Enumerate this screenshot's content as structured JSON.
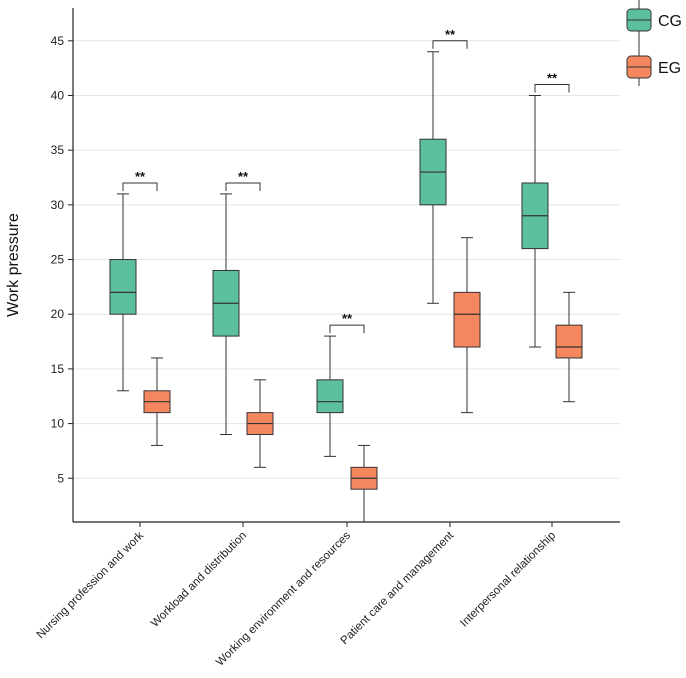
{
  "chart_data": {
    "type": "boxplot",
    "ylabel": "Work pressure",
    "xlabel": "",
    "ylim": [
      1,
      48
    ],
    "yticks": [
      5,
      10,
      15,
      20,
      25,
      30,
      35,
      40,
      45
    ],
    "grid": "horizontal",
    "legend_position": "top-right",
    "categories": [
      "Nursing profession and work",
      "Workload and distribution",
      "Working environment and resources",
      "Patient care and management",
      "Interpersonal relationship"
    ],
    "series": [
      {
        "name": "CG",
        "color": "#5dc09c",
        "boxes": [
          {
            "min": 13,
            "q1": 20,
            "median": 22,
            "q3": 25,
            "max": 31
          },
          {
            "min": 9,
            "q1": 18,
            "median": 21,
            "q3": 24,
            "max": 31
          },
          {
            "min": 7,
            "q1": 11,
            "median": 12,
            "q3": 14,
            "max": 18
          },
          {
            "min": 21,
            "q1": 30,
            "median": 33,
            "q3": 36,
            "max": 44
          },
          {
            "min": 17,
            "q1": 26,
            "median": 29,
            "q3": 32,
            "max": 40
          }
        ]
      },
      {
        "name": "EG",
        "color": "#f5875e",
        "boxes": [
          {
            "min": 8,
            "q1": 11,
            "median": 12,
            "q3": 13,
            "max": 16
          },
          {
            "min": 6,
            "q1": 9,
            "median": 10,
            "q3": 11,
            "max": 14
          },
          {
            "min": 1,
            "q1": 4,
            "median": 5,
            "q3": 6,
            "max": 8
          },
          {
            "min": 11,
            "q1": 17,
            "median": 20,
            "q3": 22,
            "max": 27
          },
          {
            "min": 12,
            "q1": 16,
            "median": 17,
            "q3": 19,
            "max": 22
          }
        ]
      }
    ],
    "annotations": [
      {
        "text": "**",
        "category": 0,
        "level": 32
      },
      {
        "text": "**",
        "category": 1,
        "level": 32
      },
      {
        "text": "**",
        "category": 2,
        "level": 19
      },
      {
        "text": "**",
        "category": 3,
        "level": 45
      },
      {
        "text": "**",
        "category": 4,
        "level": 41
      }
    ]
  }
}
